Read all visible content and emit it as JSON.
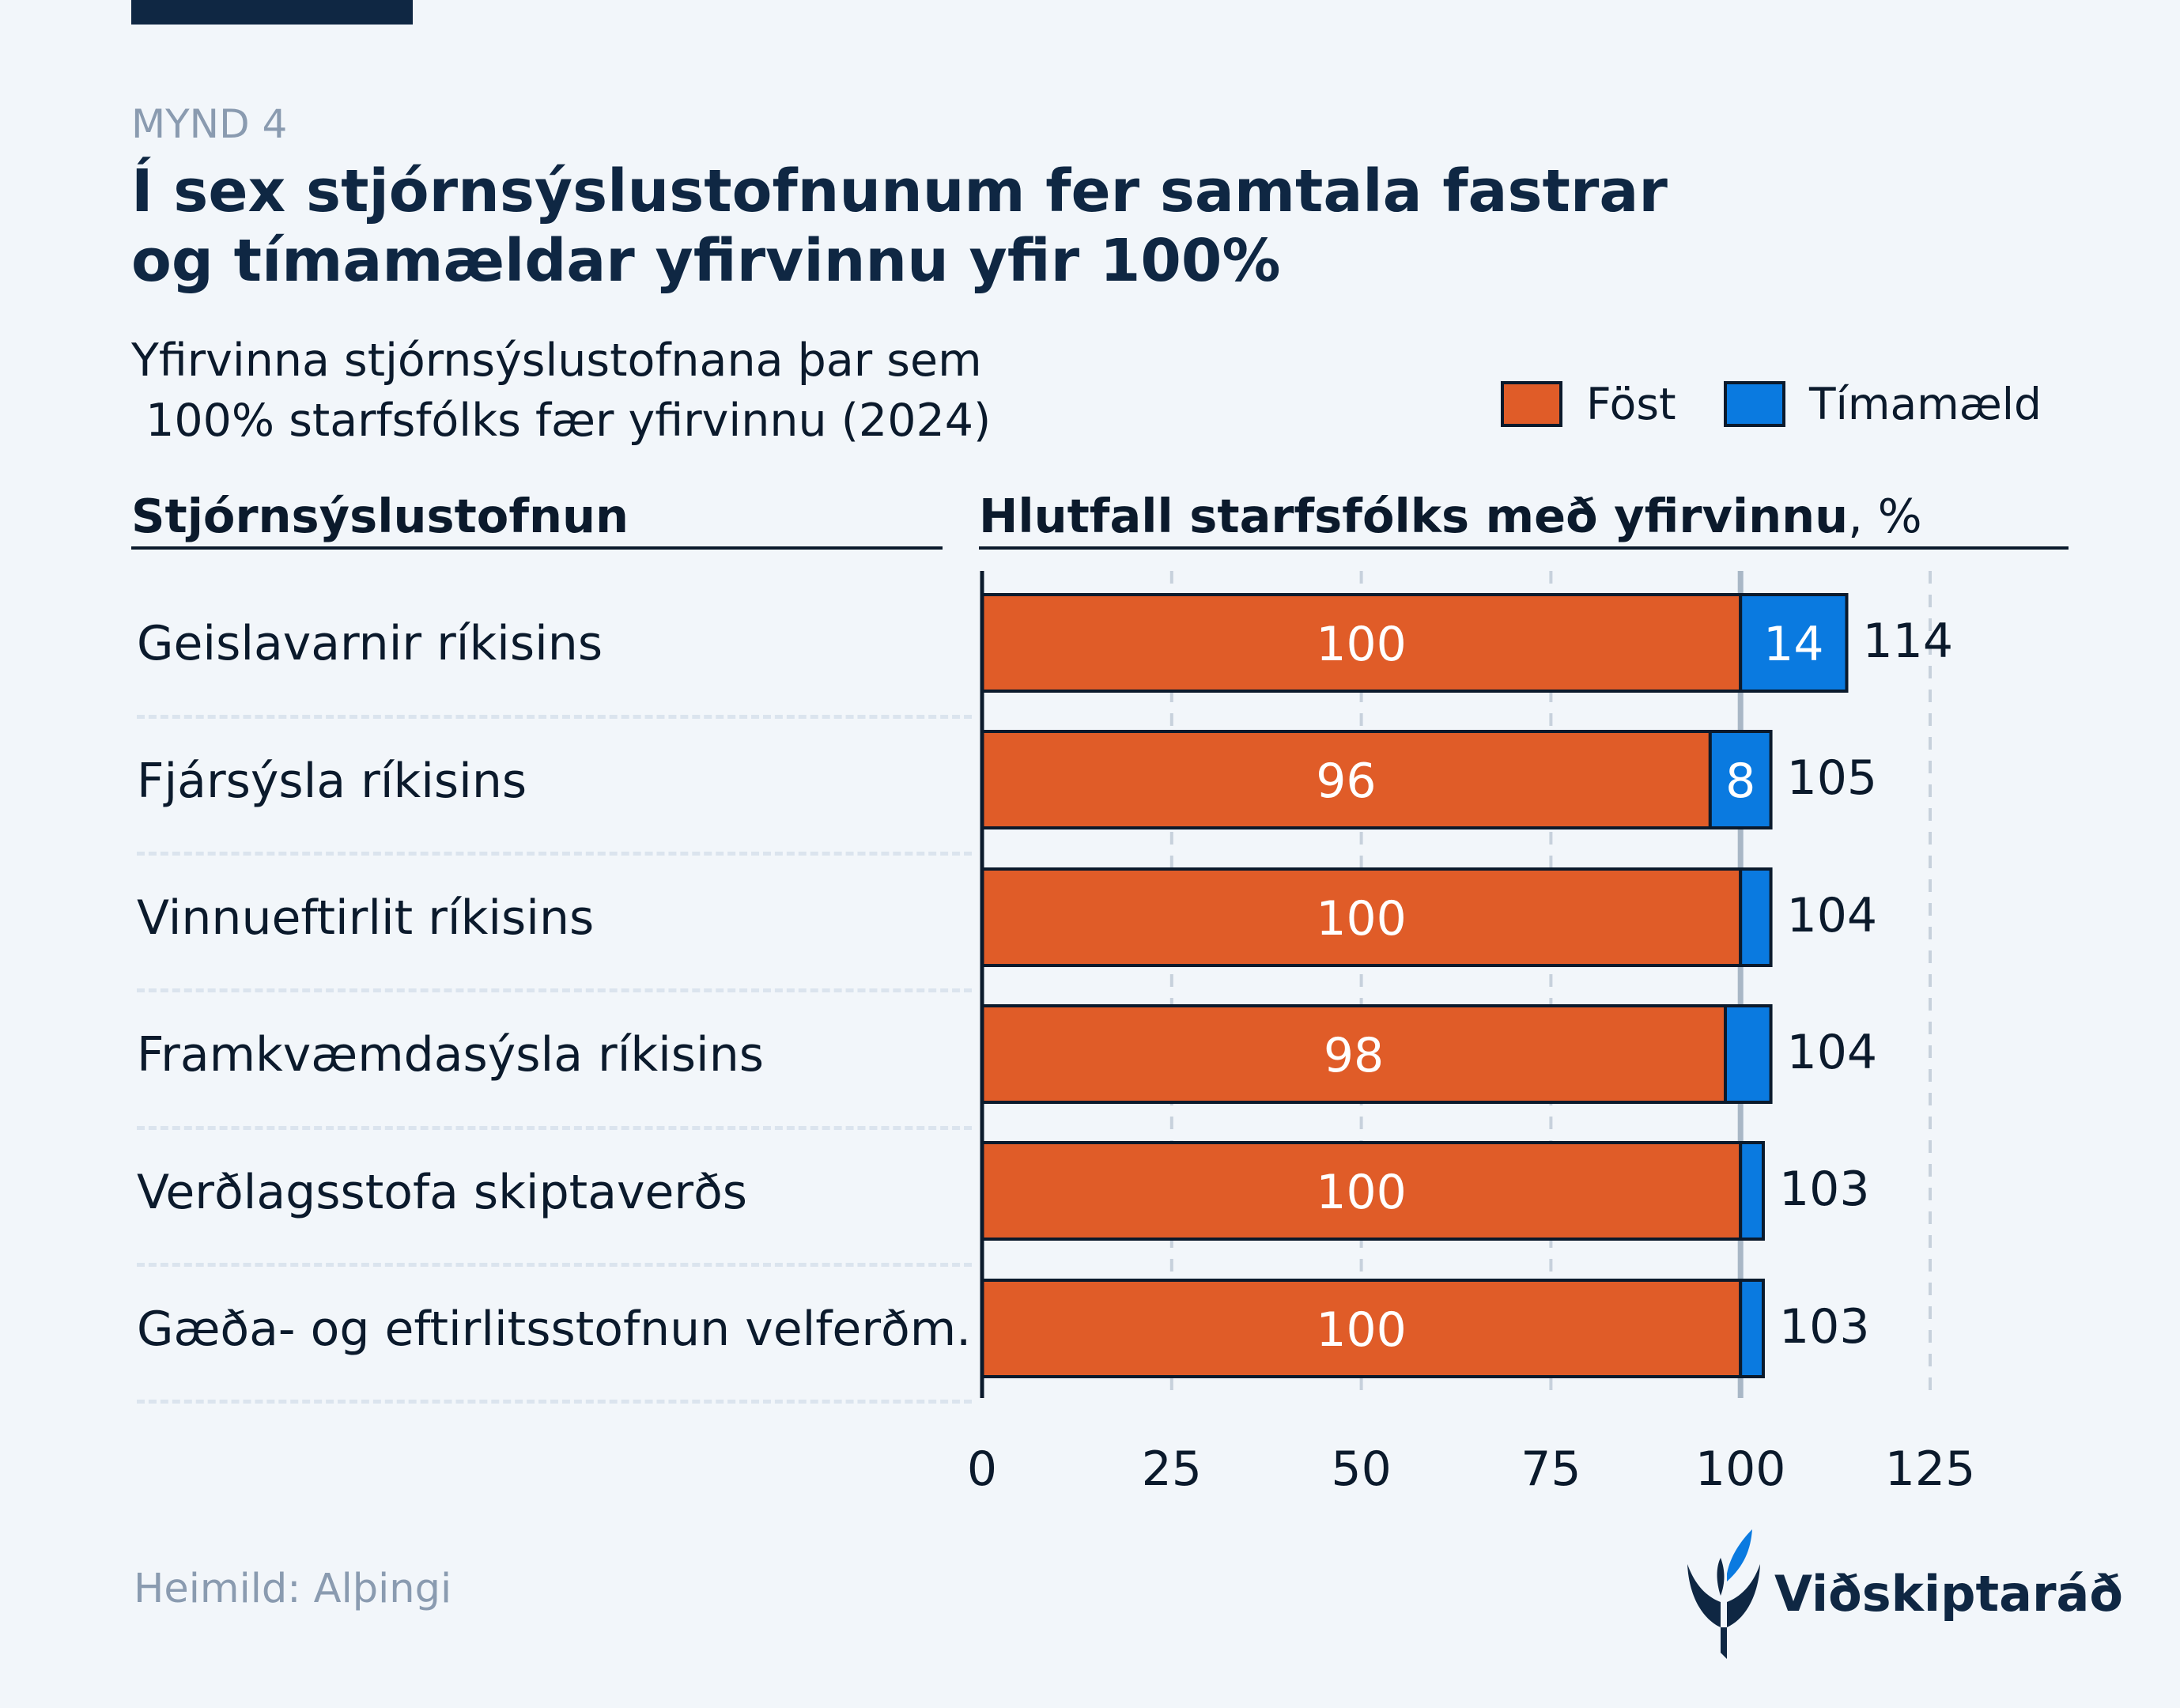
{
  "header": {
    "figure_label": "MYND 4",
    "title_line1": "Í sex stjórnsýslustofnunum fer samtala fastrar",
    "title_line2": "og tímamældar yfirvinnu yfir 100%",
    "subtitle_line1": "Yfirvinna stjórnsýslustofnana þar sem",
    "subtitle_line2": " 100% starfsfólks fær yfirvinnu (2024)"
  },
  "columns": {
    "left_title": "Stjórnsýslustofnun",
    "right_title": "Hlutfall starfsfólks með yfirvinnu",
    "right_unit": ", %"
  },
  "legend": [
    {
      "label": "Föst",
      "color": "#e05c28"
    },
    {
      "label": "Tímamæld",
      "color": "#0a7ae0"
    }
  ],
  "chart_data": {
    "type": "bar",
    "orientation": "horizontal",
    "stacked": true,
    "categories": [
      "Geislavarnir ríkisins",
      "Fjársýsla ríkisins",
      "Vinnueftirlit ríkisins",
      "Framkvæmdasýsla ríkisins",
      "Verðlagsstofa skiptaverðs",
      "Gæða- og eftirlitsstofnun velferðm."
    ],
    "series": [
      {
        "name": "Föst",
        "color": "#e05c28",
        "values": [
          100,
          96,
          100,
          98,
          100,
          100
        ],
        "labels": [
          "100",
          "96",
          "100",
          "98",
          "100",
          "100"
        ]
      },
      {
        "name": "Tímamæld",
        "color": "#0a7ae0",
        "values": [
          14,
          8,
          4,
          6,
          3,
          3
        ],
        "labels": [
          "14",
          "8",
          "",
          "",
          "",
          ""
        ]
      }
    ],
    "totals": [
      "114",
      "105",
      "104",
      "104",
      "103",
      "103"
    ],
    "xlim": [
      0,
      125
    ],
    "xticks": [
      "0",
      "25",
      "50",
      "75",
      "100",
      "125"
    ],
    "reference_line": 100,
    "grid": true
  },
  "source": "Heimild: Alþingi",
  "brand": {
    "name": "Viðskiptaráð",
    "color": "#0f2743",
    "accent": "#0a7ae0"
  }
}
